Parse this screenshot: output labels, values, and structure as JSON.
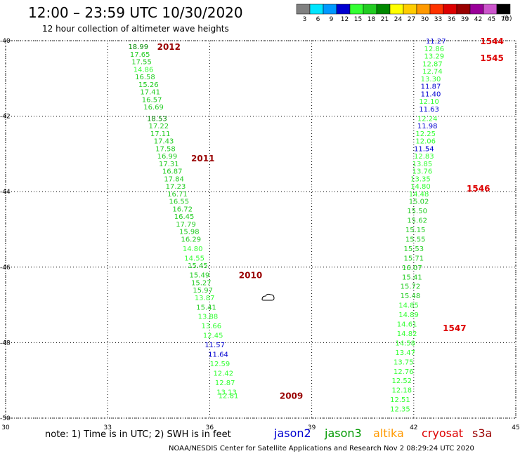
{
  "header": {
    "title": "12:00 – 23:59 UTC 10/30/2020",
    "subtitle": "12 hour collection of altimeter wave heights"
  },
  "legend": {
    "units": "(ft)",
    "bins": [
      {
        "label": "3",
        "color": "#808080"
      },
      {
        "label": "6",
        "color": "#00e5ff"
      },
      {
        "label": "9",
        "color": "#0099ff"
      },
      {
        "label": "12",
        "color": "#0000d0"
      },
      {
        "label": "15",
        "color": "#33ff33"
      },
      {
        "label": "18",
        "color": "#22cc22"
      },
      {
        "label": "21",
        "color": "#008800"
      },
      {
        "label": "24",
        "color": "#ffff00"
      },
      {
        "label": "27",
        "color": "#ffcc00"
      },
      {
        "label": "30",
        "color": "#ff9900"
      },
      {
        "label": "33",
        "color": "#ff3300"
      },
      {
        "label": "36",
        "color": "#dd0000"
      },
      {
        "label": "39",
        "color": "#990000"
      },
      {
        "label": "42",
        "color": "#990099"
      },
      {
        "label": "45",
        "color": "#cc55cc"
      },
      {
        "label": "70",
        "color": "#000000"
      }
    ]
  },
  "chart_data": {
    "type": "scatter",
    "xlim": [
      30,
      45
    ],
    "ylim": [
      -50,
      -40
    ],
    "x_ticks": [
      "30",
      "33",
      "36",
      "39",
      "42",
      "45"
    ],
    "y_ticks": [
      "-40",
      "-42",
      "-44",
      "-46",
      "-48",
      "-50"
    ],
    "grid": true,
    "tracks": [
      {
        "points": [
          {
            "x": 33.9,
            "y": -40.15,
            "v": "18.99",
            "c": "#008800"
          },
          {
            "x": 33.95,
            "y": -40.35,
            "v": "17.65",
            "c": "#22cc22"
          },
          {
            "x": 34.0,
            "y": -40.55,
            "v": "17.55",
            "c": "#22cc22"
          },
          {
            "x": 34.05,
            "y": -40.75,
            "v": "14.86",
            "c": "#33ff33"
          },
          {
            "x": 34.1,
            "y": -40.95,
            "v": "16.58",
            "c": "#22cc22"
          },
          {
            "x": 34.2,
            "y": -41.15,
            "v": "15.26",
            "c": "#22cc22"
          },
          {
            "x": 34.25,
            "y": -41.35,
            "v": "17.41",
            "c": "#22cc22"
          },
          {
            "x": 34.3,
            "y": -41.55,
            "v": "16.57",
            "c": "#22cc22"
          },
          {
            "x": 34.35,
            "y": -41.75,
            "v": "16.69",
            "c": "#22cc22"
          },
          {
            "x": 34.45,
            "y": -42.05,
            "v": "18.53",
            "c": "#008800"
          },
          {
            "x": 34.5,
            "y": -42.25,
            "v": "17.22",
            "c": "#22cc22"
          },
          {
            "x": 34.55,
            "y": -42.45,
            "v": "17.11",
            "c": "#22cc22"
          },
          {
            "x": 34.65,
            "y": -42.65,
            "v": "17.43",
            "c": "#22cc22"
          },
          {
            "x": 34.7,
            "y": -42.85,
            "v": "17.58",
            "c": "#22cc22"
          },
          {
            "x": 34.75,
            "y": -43.05,
            "v": "16.99",
            "c": "#22cc22"
          },
          {
            "x": 34.8,
            "y": -43.25,
            "v": "17.31",
            "c": "#22cc22"
          },
          {
            "x": 34.9,
            "y": -43.45,
            "v": "16.87",
            "c": "#22cc22"
          },
          {
            "x": 34.95,
            "y": -43.65,
            "v": "17.84",
            "c": "#22cc22"
          },
          {
            "x": 35.0,
            "y": -43.85,
            "v": "17.23",
            "c": "#22cc22"
          },
          {
            "x": 35.05,
            "y": -44.05,
            "v": "16.71",
            "c": "#22cc22"
          },
          {
            "x": 35.1,
            "y": -44.25,
            "v": "16.55",
            "c": "#22cc22"
          },
          {
            "x": 35.2,
            "y": -44.45,
            "v": "16.72",
            "c": "#22cc22"
          },
          {
            "x": 35.25,
            "y": -44.65,
            "v": "16.45",
            "c": "#22cc22"
          },
          {
            "x": 35.3,
            "y": -44.85,
            "v": "17.79",
            "c": "#22cc22"
          },
          {
            "x": 35.4,
            "y": -45.05,
            "v": "15.98",
            "c": "#22cc22"
          },
          {
            "x": 35.45,
            "y": -45.25,
            "v": "16.29",
            "c": "#22cc22"
          },
          {
            "x": 35.5,
            "y": -45.5,
            "v": "14.80",
            "c": "#33ff33"
          },
          {
            "x": 35.55,
            "y": -45.75,
            "v": "14.55",
            "c": "#33ff33"
          },
          {
            "x": 35.65,
            "y": -45.95,
            "v": "15.45",
            "c": "#22cc22"
          },
          {
            "x": 35.7,
            "y": -46.2,
            "v": "15.49",
            "c": "#22cc22"
          },
          {
            "x": 35.75,
            "y": -46.4,
            "v": "15.27",
            "c": "#22cc22"
          },
          {
            "x": 35.8,
            "y": -46.6,
            "v": "15.97",
            "c": "#22cc22"
          },
          {
            "x": 35.85,
            "y": -46.8,
            "v": "13.87",
            "c": "#33ff33"
          },
          {
            "x": 35.9,
            "y": -47.05,
            "v": "15.41",
            "c": "#22cc22"
          },
          {
            "x": 35.95,
            "y": -47.3,
            "v": "13.88",
            "c": "#33ff33"
          },
          {
            "x": 36.05,
            "y": -47.55,
            "v": "13.66",
            "c": "#33ff33"
          },
          {
            "x": 36.1,
            "y": -47.8,
            "v": "12.45",
            "c": "#33ff33"
          },
          {
            "x": 36.15,
            "y": -48.05,
            "v": "11.57",
            "c": "#0000d0"
          },
          {
            "x": 36.25,
            "y": -48.3,
            "v": "11.64",
            "c": "#0000d0"
          },
          {
            "x": 36.3,
            "y": -48.55,
            "v": "12.59",
            "c": "#33ff33"
          },
          {
            "x": 36.4,
            "y": -48.8,
            "v": "12.42",
            "c": "#33ff33"
          },
          {
            "x": 36.45,
            "y": -49.05,
            "v": "12.87",
            "c": "#33ff33"
          },
          {
            "x": 36.5,
            "y": -49.3,
            "v": "13.13",
            "c": "#33ff33"
          },
          {
            "x": 36.55,
            "y": -49.4,
            "v": "12.81",
            "c": "#33ff33"
          }
        ],
        "time_labels": [
          {
            "text": "2012",
            "x": 34.8,
            "y": -40.15
          },
          {
            "text": "2011",
            "x": 35.8,
            "y": -43.1
          },
          {
            "text": "2010",
            "x": 37.2,
            "y": -46.2
          },
          {
            "text": "2009",
            "x": 38.4,
            "y": -49.4
          }
        ]
      },
      {
        "points": [
          {
            "x": 42.65,
            "y": -40.0,
            "v": "11.27",
            "c": "#0000d0"
          },
          {
            "x": 42.6,
            "y": -40.2,
            "v": "12.86",
            "c": "#33ff33"
          },
          {
            "x": 42.6,
            "y": -40.4,
            "v": "13.29",
            "c": "#33ff33"
          },
          {
            "x": 42.55,
            "y": -40.6,
            "v": "12.87",
            "c": "#33ff33"
          },
          {
            "x": 42.55,
            "y": -40.8,
            "v": "12.74",
            "c": "#33ff33"
          },
          {
            "x": 42.5,
            "y": -41.0,
            "v": "13.30",
            "c": "#33ff33"
          },
          {
            "x": 42.5,
            "y": -41.2,
            "v": "11.87",
            "c": "#0000d0"
          },
          {
            "x": 42.5,
            "y": -41.4,
            "v": "11.40",
            "c": "#0000d0"
          },
          {
            "x": 42.45,
            "y": -41.6,
            "v": "12.10",
            "c": "#33ff33"
          },
          {
            "x": 42.45,
            "y": -41.8,
            "v": "11.63",
            "c": "#0000d0"
          },
          {
            "x": 42.4,
            "y": -42.05,
            "v": "12.24",
            "c": "#33ff33"
          },
          {
            "x": 42.4,
            "y": -42.25,
            "v": "11.98",
            "c": "#0000d0"
          },
          {
            "x": 42.35,
            "y": -42.45,
            "v": "12.25",
            "c": "#33ff33"
          },
          {
            "x": 42.35,
            "y": -42.65,
            "v": "12.06",
            "c": "#33ff33"
          },
          {
            "x": 42.3,
            "y": -42.85,
            "v": "11.54",
            "c": "#0000d0"
          },
          {
            "x": 42.3,
            "y": -43.05,
            "v": "12.83",
            "c": "#33ff33"
          },
          {
            "x": 42.25,
            "y": -43.25,
            "v": "13.85",
            "c": "#33ff33"
          },
          {
            "x": 42.25,
            "y": -43.45,
            "v": "13.76",
            "c": "#33ff33"
          },
          {
            "x": 42.2,
            "y": -43.65,
            "v": "13.35",
            "c": "#33ff33"
          },
          {
            "x": 42.2,
            "y": -43.85,
            "v": "14.80",
            "c": "#33ff33"
          },
          {
            "x": 42.15,
            "y": -44.05,
            "v": "14.48",
            "c": "#33ff33"
          },
          {
            "x": 42.15,
            "y": -44.25,
            "v": "15.02",
            "c": "#22cc22"
          },
          {
            "x": 42.1,
            "y": -44.5,
            "v": "15.50",
            "c": "#22cc22"
          },
          {
            "x": 42.1,
            "y": -44.75,
            "v": "15.62",
            "c": "#22cc22"
          },
          {
            "x": 42.05,
            "y": -45.0,
            "v": "15.15",
            "c": "#22cc22"
          },
          {
            "x": 42.05,
            "y": -45.25,
            "v": "15.55",
            "c": "#22cc22"
          },
          {
            "x": 42.0,
            "y": -45.5,
            "v": "15.53",
            "c": "#22cc22"
          },
          {
            "x": 42.0,
            "y": -45.75,
            "v": "15.71",
            "c": "#22cc22"
          },
          {
            "x": 41.95,
            "y": -46.0,
            "v": "16.07",
            "c": "#22cc22"
          },
          {
            "x": 41.95,
            "y": -46.25,
            "v": "15.41",
            "c": "#22cc22"
          },
          {
            "x": 41.9,
            "y": -46.5,
            "v": "15.72",
            "c": "#22cc22"
          },
          {
            "x": 41.9,
            "y": -46.75,
            "v": "15.48",
            "c": "#22cc22"
          },
          {
            "x": 41.85,
            "y": -47.0,
            "v": "14.85",
            "c": "#33ff33"
          },
          {
            "x": 41.85,
            "y": -47.25,
            "v": "14.89",
            "c": "#33ff33"
          },
          {
            "x": 41.8,
            "y": -47.5,
            "v": "14.61",
            "c": "#33ff33"
          },
          {
            "x": 41.8,
            "y": -47.75,
            "v": "14.82",
            "c": "#33ff33"
          },
          {
            "x": 41.75,
            "y": -48.0,
            "v": "14.58",
            "c": "#33ff33"
          },
          {
            "x": 41.75,
            "y": -48.25,
            "v": "13.47",
            "c": "#33ff33"
          },
          {
            "x": 41.7,
            "y": -48.5,
            "v": "13.75",
            "c": "#33ff33"
          },
          {
            "x": 41.7,
            "y": -48.75,
            "v": "12.76",
            "c": "#33ff33"
          },
          {
            "x": 41.65,
            "y": -49.0,
            "v": "12.52",
            "c": "#33ff33"
          },
          {
            "x": 41.65,
            "y": -49.25,
            "v": "12.18",
            "c": "#33ff33"
          },
          {
            "x": 41.6,
            "y": -49.5,
            "v": "12.51",
            "c": "#33ff33"
          },
          {
            "x": 41.6,
            "y": -49.75,
            "v": "12.35",
            "c": "#33ff33"
          }
        ],
        "time_labels": [
          {
            "text": "1544",
            "x": 44.3,
            "y": -40.0
          },
          {
            "text": "1545",
            "x": 44.3,
            "y": -40.45
          },
          {
            "text": "1546",
            "x": 43.9,
            "y": -43.9
          },
          {
            "text": "1547",
            "x": 43.2,
            "y": -47.6
          }
        ]
      }
    ]
  },
  "footer": {
    "note": "note:  1) Time is in UTC; 2) SWH is in feet",
    "satellites": [
      {
        "name": "jason2",
        "color": "#0000d0"
      },
      {
        "name": "jason3",
        "color": "#009900"
      },
      {
        "name": "altika",
        "color": "#ff9900"
      },
      {
        "name": "cryosat",
        "color": "#dd0000"
      },
      {
        "name": "s3a",
        "color": "#990000"
      }
    ],
    "credit": "NOAA/NESDIS Center for Satellite Applications and Research    Nov  2 08:29:24 UTC 2020"
  }
}
